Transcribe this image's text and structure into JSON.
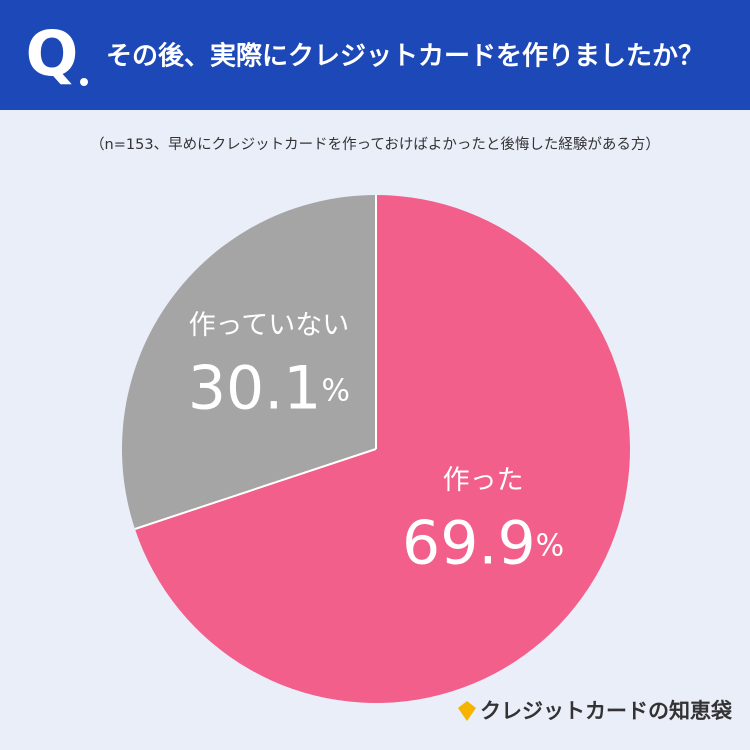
{
  "header": {
    "mark": "Q",
    "title": "その後、実際にクレジットカードを作りましたか？"
  },
  "chart_data": {
    "type": "pie",
    "subtitle": "（n=153、早めにクレジットカードを作っておけばよかったと後悔した経験がある方）",
    "categories": [
      "作った",
      "作っていない"
    ],
    "values": [
      69.9,
      30.1
    ],
    "value_labels": [
      "69.9%",
      "30.1%"
    ],
    "colors": [
      "#f25f8b",
      "#a5a5a5"
    ]
  },
  "footer": {
    "brand": "クレジットカードの知恵袋"
  }
}
